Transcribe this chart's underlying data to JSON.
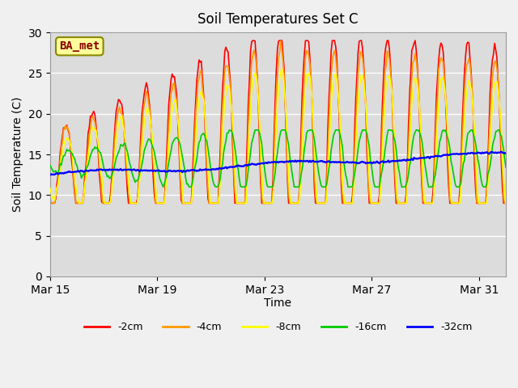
{
  "title": "Soil Temperatures Set C",
  "xlabel": "Time",
  "ylabel": "Soil Temperature (C)",
  "legend_label": "BA_met",
  "series_labels": [
    "-2cm",
    "-4cm",
    "-8cm",
    "-16cm",
    "-32cm"
  ],
  "series_colors": [
    "#ff0000",
    "#ff9900",
    "#ffff00",
    "#00cc00",
    "#0000ff"
  ],
  "ylim": [
    0,
    30
  ],
  "yticks": [
    0,
    5,
    10,
    15,
    20,
    25,
    30
  ],
  "fig_bg_color": "#f0f0f0",
  "plot_bg_color": "#dcdcdc",
  "grid_color": "#ffffff",
  "annotation_box_color": "#ffff99",
  "annotation_text_color": "#880000",
  "annotation_border_color": "#888800",
  "x_ticks_pos": [
    0,
    4,
    8,
    12,
    16
  ],
  "x_tick_labels": [
    "Mar 15",
    "Mar 19",
    "Mar 23",
    "Mar 27",
    "Mar 31"
  ]
}
